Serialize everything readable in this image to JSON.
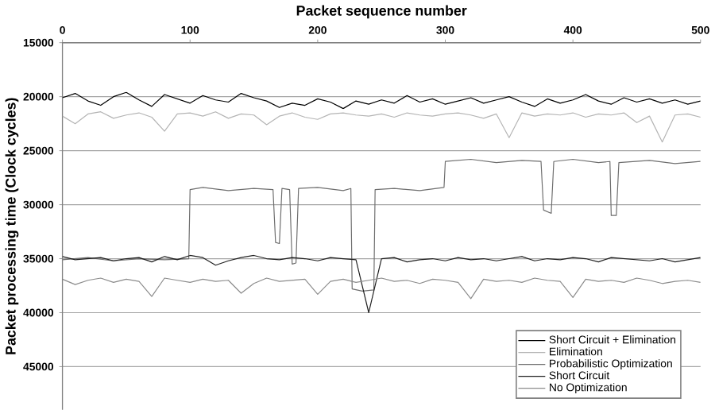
{
  "chart_data": {
    "type": "line",
    "xlabel": "Packet sequence number",
    "ylabel": "Packet processing time (Clock cycles)",
    "x": [
      0,
      10,
      20,
      30,
      40,
      50,
      60,
      70,
      80,
      90,
      100,
      110,
      120,
      130,
      140,
      150,
      160,
      170,
      180,
      190,
      200,
      210,
      220,
      230,
      240,
      250,
      260,
      270,
      280,
      290,
      300,
      310,
      320,
      330,
      340,
      350,
      360,
      370,
      380,
      390,
      400,
      410,
      420,
      430,
      440,
      450,
      460,
      470,
      480,
      490,
      500
    ],
    "series": [
      {
        "name": "Short Circuit + Elimination",
        "color": "#000000",
        "values": [
          20100,
          19700,
          20400,
          20800,
          20000,
          19600,
          20300,
          20900,
          19800,
          20200,
          20600,
          19900,
          20300,
          20500,
          19700,
          20100,
          20400,
          21000,
          20600,
          20800,
          20200,
          20500,
          21100,
          20400,
          20700,
          20300,
          20600,
          19900,
          20500,
          20200,
          20700,
          20400,
          20100,
          20600,
          20300,
          20000,
          20500,
          20900,
          20200,
          20600,
          20300,
          19800,
          20400,
          20700,
          20100,
          20500,
          20200,
          20600,
          20300,
          20700,
          20400
        ]
      },
      {
        "name": "Elimination",
        "color": "#b4b4b4",
        "values": [
          21800,
          22500,
          21600,
          21400,
          22000,
          21700,
          21500,
          21900,
          23200,
          21600,
          21500,
          21800,
          21400,
          22000,
          21600,
          21700,
          22600,
          21800,
          21500,
          21900,
          22100,
          21600,
          21500,
          21700,
          21800,
          21600,
          21900,
          21500,
          21700,
          21800,
          21600,
          21500,
          21700,
          22000,
          21600,
          23800,
          21500,
          21800,
          21600,
          21700,
          21500,
          21900,
          21600,
          21700,
          21500,
          22400,
          21800,
          24200,
          21700,
          21600,
          21900
        ]
      },
      {
        "name": "Probabilistic Optimization",
        "color": "#6e6e6e",
        "x": [
          0,
          20,
          40,
          60,
          80,
          99,
          100,
          110,
          130,
          150,
          165,
          167,
          170,
          172,
          178,
          180,
          183,
          185,
          200,
          220,
          226,
          227,
          235,
          244,
          245,
          260,
          280,
          299,
          300,
          320,
          340,
          360,
          375,
          377,
          383,
          385,
          400,
          420,
          429,
          430,
          434,
          436,
          460,
          480,
          500
        ],
        "values": [
          35100,
          34900,
          35200,
          35000,
          35100,
          35000,
          28600,
          28400,
          28700,
          28500,
          28600,
          33500,
          33600,
          28500,
          28600,
          35500,
          35400,
          28500,
          28400,
          28700,
          28500,
          37800,
          38000,
          37900,
          28600,
          28500,
          28700,
          28400,
          26000,
          25800,
          26100,
          25900,
          26000,
          30500,
          30800,
          26000,
          25800,
          26100,
          26000,
          31000,
          31000,
          26100,
          25900,
          26200,
          26000
        ]
      },
      {
        "name": "Short Circuit",
        "color": "#202020",
        "values": [
          34800,
          35100,
          35000,
          34900,
          35200,
          35000,
          34900,
          35300,
          34800,
          35100,
          34700,
          34900,
          35600,
          35200,
          34900,
          34700,
          35000,
          35100,
          34900,
          35000,
          35200,
          34900,
          35000,
          35100,
          40000,
          35000,
          34900,
          35300,
          35100,
          35000,
          35200,
          34900,
          35100,
          35000,
          35200,
          35000,
          34800,
          35200,
          35000,
          35100,
          34900,
          35000,
          35300,
          34900,
          35000,
          35100,
          35200,
          35000,
          35300,
          35100,
          34900
        ]
      },
      {
        "name": "No Optimization",
        "color": "#8c8c8c",
        "values": [
          36900,
          37400,
          37000,
          36800,
          37200,
          36900,
          37100,
          38500,
          36800,
          37000,
          37200,
          36900,
          37100,
          37000,
          38200,
          37300,
          36800,
          37100,
          37000,
          36900,
          38300,
          37100,
          36900,
          37200,
          37000,
          36800,
          37100,
          37000,
          37300,
          36900,
          37000,
          37200,
          38700,
          36900,
          37100,
          37000,
          37200,
          36800,
          37000,
          37100,
          38600,
          36900,
          37100,
          37000,
          37200,
          36800,
          37000,
          37300,
          37100,
          37000,
          37200
        ]
      }
    ],
    "xlim": [
      0,
      500
    ],
    "xticks": [
      0,
      100,
      200,
      300,
      400,
      500
    ],
    "ylim": [
      49000,
      15000
    ],
    "yticks": [
      15000,
      20000,
      25000,
      30000,
      35000,
      40000,
      45000
    ],
    "grid": "y",
    "legend": "bottom right",
    "marker": "none",
    "line_style": "solid"
  }
}
